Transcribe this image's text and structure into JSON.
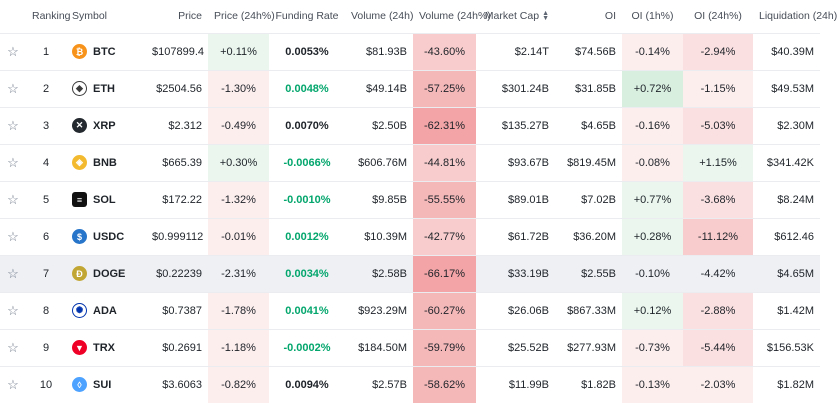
{
  "colors": {
    "pos_light": "#eaf6ee",
    "pos_mid": "#d8efe0",
    "neg_1": "#fdeeee",
    "neg_2": "#fbe0e1",
    "neg_3": "#f8cccc",
    "neg_4": "#f5b8b9",
    "neg_5": "#f2a4a6",
    "neutral": "#ffffff",
    "green_text": "#03a66d"
  },
  "headers": {
    "fav": "",
    "ranking": "Ranking",
    "symbol": "Symbol",
    "price": "Price",
    "price_24h": "Price (24h%)",
    "funding": "Funding Rate",
    "volume": "Volume (24h)",
    "volume_24h": "Volume (24h%)",
    "mcap": "Market Cap",
    "oi": "OI",
    "oi_1h": "OI (1h%)",
    "oi_24h": "OI (24h%)",
    "liq": "Liquidation (24h)"
  },
  "rows": [
    {
      "rank": "1",
      "symbol": "BTC",
      "icon": "bitcoin-icon",
      "glyph": "₿",
      "icon_color": "#f7931a",
      "icon_style": "",
      "price": "$107899.4",
      "price_24h": "+0.11%",
      "price_bg": "#eaf6ee",
      "funding": "0.0053%",
      "funding_green": false,
      "volume": "$81.93B",
      "volume_24h": "-43.60%",
      "vol_bg": "#f8cccc",
      "mcap": "$2.14T",
      "oi": "$74.56B",
      "oi_1h": "-0.14%",
      "oi1h_bg": "#fdeeee",
      "oi_24h": "-2.94%",
      "oi24_bg": "#fbe0e1",
      "liq": "$40.39M"
    },
    {
      "rank": "2",
      "symbol": "ETH",
      "icon": "ethereum-icon",
      "glyph": "◆",
      "icon_color": "#3c3c3d",
      "icon_style": "outline",
      "price": "$2504.56",
      "price_24h": "-1.30%",
      "price_bg": "#fdeeee",
      "funding": "0.0048%",
      "funding_green": true,
      "volume": "$49.14B",
      "volume_24h": "-57.25%",
      "vol_bg": "#f5b8b9",
      "mcap": "$301.24B",
      "oi": "$31.85B",
      "oi_1h": "+0.72%",
      "oi1h_bg": "#d8efe0",
      "oi_24h": "-1.15%",
      "oi24_bg": "#fdeeee",
      "liq": "$49.53M"
    },
    {
      "rank": "3",
      "symbol": "XRP",
      "icon": "xrp-icon",
      "glyph": "✕",
      "icon_color": "#23292f",
      "icon_style": "",
      "price": "$2.312",
      "price_24h": "-0.49%",
      "price_bg": "#fdeeee",
      "funding": "0.0070%",
      "funding_green": false,
      "volume": "$2.50B",
      "volume_24h": "-62.31%",
      "vol_bg": "#f2a4a6",
      "mcap": "$135.27B",
      "oi": "$4.65B",
      "oi_1h": "-0.16%",
      "oi1h_bg": "#fdeeee",
      "oi_24h": "-5.03%",
      "oi24_bg": "#fbe0e1",
      "liq": "$2.30M"
    },
    {
      "rank": "4",
      "symbol": "BNB",
      "icon": "bnb-icon",
      "glyph": "◈",
      "icon_color": "#f3ba2f",
      "icon_style": "",
      "price": "$665.39",
      "price_24h": "+0.30%",
      "price_bg": "#eaf6ee",
      "funding": "-0.0066%",
      "funding_green": true,
      "volume": "$606.76M",
      "volume_24h": "-44.81%",
      "vol_bg": "#f8cccc",
      "mcap": "$93.67B",
      "oi": "$819.45M",
      "oi_1h": "-0.08%",
      "oi1h_bg": "#fdeeee",
      "oi_24h": "+1.15%",
      "oi24_bg": "#eaf6ee",
      "liq": "$341.42K"
    },
    {
      "rank": "5",
      "symbol": "SOL",
      "icon": "solana-icon",
      "glyph": "≡",
      "icon_color": "#111111",
      "icon_style": "sq",
      "price": "$172.22",
      "price_24h": "-1.32%",
      "price_bg": "#fdeeee",
      "funding": "-0.0010%",
      "funding_green": true,
      "volume": "$9.85B",
      "volume_24h": "-55.55%",
      "vol_bg": "#f5b8b9",
      "mcap": "$89.01B",
      "oi": "$7.02B",
      "oi_1h": "+0.77%",
      "oi1h_bg": "#eaf6ee",
      "oi_24h": "-3.68%",
      "oi24_bg": "#fbe0e1",
      "liq": "$8.24M"
    },
    {
      "rank": "6",
      "symbol": "USDC",
      "icon": "usdc-icon",
      "glyph": "$",
      "icon_color": "#2775ca",
      "icon_style": "",
      "price": "$0.999112",
      "price_24h": "-0.01%",
      "price_bg": "#fdeeee",
      "funding": "0.0012%",
      "funding_green": true,
      "volume": "$10.39M",
      "volume_24h": "-42.77%",
      "vol_bg": "#f8cccc",
      "mcap": "$61.72B",
      "oi": "$36.20M",
      "oi_1h": "+0.28%",
      "oi1h_bg": "#eaf6ee",
      "oi_24h": "-11.12%",
      "oi24_bg": "#f8cccc",
      "liq": "$612.46"
    },
    {
      "rank": "7",
      "symbol": "DOGE",
      "icon": "dogecoin-icon",
      "glyph": "Ð",
      "icon_color": "#c2a633",
      "icon_style": "",
      "price": "$0.22239",
      "price_24h": "-2.31%",
      "price_bg": "#fbe0e1",
      "funding": "0.0034%",
      "funding_green": true,
      "volume": "$2.58B",
      "volume_24h": "-66.17%",
      "vol_bg": "#f2a4a6",
      "mcap": "$33.19B",
      "oi": "$2.55B",
      "oi_1h": "-0.10%",
      "oi1h_bg": "#fdeeee",
      "oi_24h": "-4.42%",
      "oi24_bg": "#fbe0e1",
      "liq": "$4.65M",
      "highlight": true
    },
    {
      "rank": "8",
      "symbol": "ADA",
      "icon": "cardano-icon",
      "glyph": "✺",
      "icon_color": "#0033ad",
      "icon_style": "outline",
      "price": "$0.7387",
      "price_24h": "-1.78%",
      "price_bg": "#fdeeee",
      "funding": "0.0041%",
      "funding_green": true,
      "volume": "$923.29M",
      "volume_24h": "-60.27%",
      "vol_bg": "#f5b8b9",
      "mcap": "$26.06B",
      "oi": "$867.33M",
      "oi_1h": "+0.12%",
      "oi1h_bg": "#eaf6ee",
      "oi_24h": "-2.88%",
      "oi24_bg": "#fbe0e1",
      "liq": "$1.42M"
    },
    {
      "rank": "9",
      "symbol": "TRX",
      "icon": "tron-icon",
      "glyph": "▼",
      "icon_color": "#ef0027",
      "icon_style": "",
      "price": "$0.2691",
      "price_24h": "-1.18%",
      "price_bg": "#fdeeee",
      "funding": "-0.0002%",
      "funding_green": true,
      "volume": "$184.50M",
      "volume_24h": "-59.79%",
      "vol_bg": "#f5b8b9",
      "mcap": "$25.52B",
      "oi": "$277.93M",
      "oi_1h": "-0.73%",
      "oi1h_bg": "#fdeeee",
      "oi_24h": "-5.44%",
      "oi24_bg": "#fbe0e1",
      "liq": "$156.53K"
    },
    {
      "rank": "10",
      "symbol": "SUI",
      "icon": "sui-icon",
      "glyph": "◊",
      "icon_color": "#4da2ff",
      "icon_style": "",
      "price": "$3.6063",
      "price_24h": "-0.82%",
      "price_bg": "#fdeeee",
      "funding": "0.0094%",
      "funding_green": false,
      "volume": "$2.57B",
      "volume_24h": "-58.62%",
      "vol_bg": "#f5b8b9",
      "mcap": "$11.99B",
      "oi": "$1.82B",
      "oi_1h": "-0.13%",
      "oi1h_bg": "#fdeeee",
      "oi_24h": "-2.03%",
      "oi24_bg": "#fdeeee",
      "liq": "$1.82M"
    }
  ]
}
